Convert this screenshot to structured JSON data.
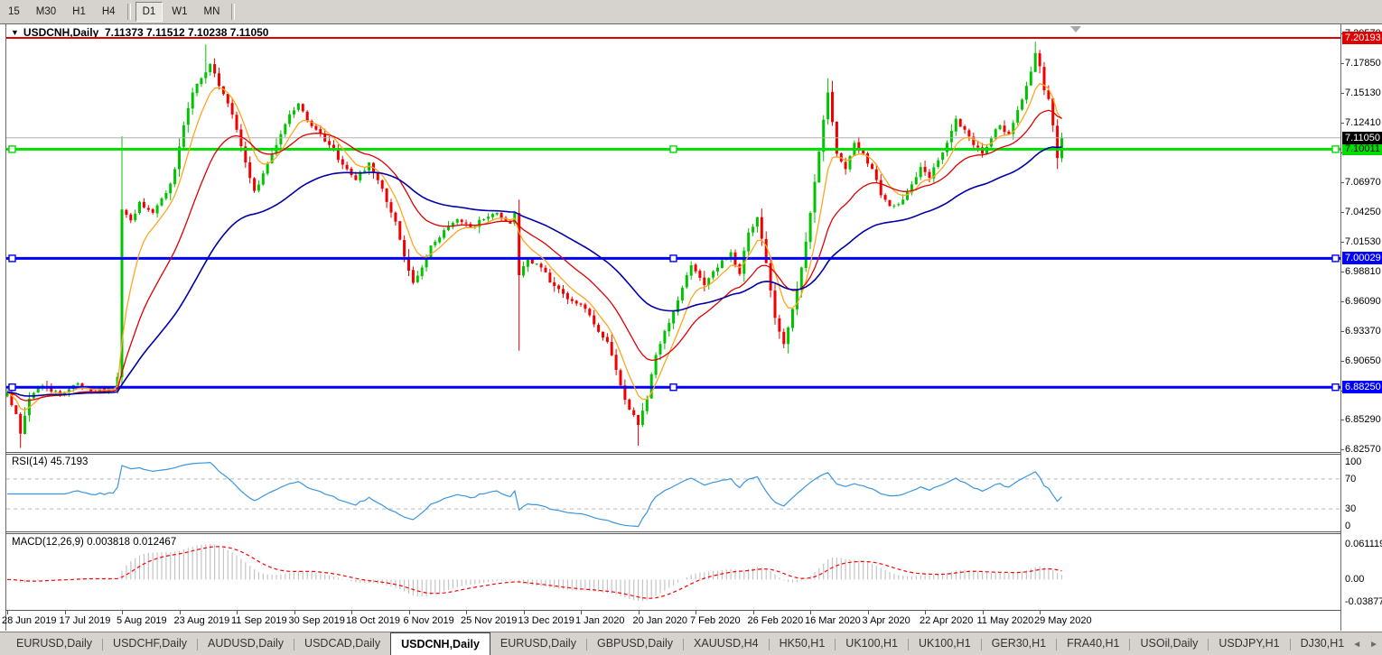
{
  "toolbar": {
    "timeframes": [
      {
        "label": "15",
        "active": false
      },
      {
        "label": "M30",
        "active": false
      },
      {
        "label": "H1",
        "active": false
      },
      {
        "label": "H4",
        "active": false
      },
      {
        "label": "D1",
        "active": true
      },
      {
        "label": "W1",
        "active": false
      },
      {
        "label": "MN",
        "active": false
      }
    ]
  },
  "chart": {
    "title_symbol": "USDCNH,Daily",
    "title_quote": "7.11373 7.11512 7.10238 7.11050"
  },
  "chart_data": {
    "type": "candlestick",
    "symbol": "USDCNH",
    "timeframe": "Daily",
    "ohlc_display": {
      "open": 7.11373,
      "high": 7.11512,
      "low": 7.10238,
      "close": 7.1105
    },
    "y_axis_labels": [
      "7.20570",
      "7.17850",
      "7.15130",
      "7.12410",
      "7.09690",
      "7.06970",
      "7.04250",
      "7.01530",
      "6.98810",
      "6.96090",
      "6.93370",
      "6.90650",
      "6.87930",
      "6.85290",
      "6.82570"
    ],
    "y_range": [
      6.8224,
      7.2143
    ],
    "x_labels": [
      "28 Jun 2019",
      "17 Jul 2019",
      "5 Aug 2019",
      "23 Aug 2019",
      "11 Sep 2019",
      "30 Sep 2019",
      "18 Oct 2019",
      "6 Nov 2019",
      "25 Nov 2019",
      "13 Dec 2019",
      "1 Jan 2020",
      "20 Jan 2020",
      "7 Feb 2020",
      "26 Feb 2020",
      "16 Mar 2020",
      "3 Apr 2020",
      "22 Apr 2020",
      "11 May 2020",
      "29 May 2020"
    ],
    "candles": {
      "count": 240,
      "close_keypoints": [
        [
          0,
          6.878
        ],
        [
          2,
          6.858
        ],
        [
          3,
          6.84
        ],
        [
          5,
          6.872
        ],
        [
          8,
          6.884
        ],
        [
          12,
          6.876
        ],
        [
          16,
          6.886
        ],
        [
          20,
          6.878
        ],
        [
          24,
          6.881
        ],
        [
          25,
          6.892
        ],
        [
          26,
          7.045
        ],
        [
          28,
          7.035
        ],
        [
          30,
          7.052
        ],
        [
          33,
          7.042
        ],
        [
          36,
          7.06
        ],
        [
          38,
          7.082
        ],
        [
          40,
          7.122
        ],
        [
          42,
          7.152
        ],
        [
          44,
          7.165
        ],
        [
          46,
          7.178
        ],
        [
          48,
          7.158
        ],
        [
          50,
          7.142
        ],
        [
          52,
          7.118
        ],
        [
          54,
          7.088
        ],
        [
          56,
          7.062
        ],
        [
          58,
          7.078
        ],
        [
          60,
          7.096
        ],
        [
          62,
          7.114
        ],
        [
          64,
          7.132
        ],
        [
          66,
          7.142
        ],
        [
          68,
          7.126
        ],
        [
          70,
          7.118
        ],
        [
          73,
          7.104
        ],
        [
          76,
          7.086
        ],
        [
          79,
          7.072
        ],
        [
          82,
          7.088
        ],
        [
          85,
          7.064
        ],
        [
          88,
          7.034
        ],
        [
          90,
          7.002
        ],
        [
          92,
          6.978
        ],
        [
          94,
          6.992
        ],
        [
          96,
          7.012
        ],
        [
          99,
          7.026
        ],
        [
          102,
          7.036
        ],
        [
          105,
          7.028
        ],
        [
          108,
          7.036
        ],
        [
          111,
          7.042
        ],
        [
          114,
          7.032
        ],
        [
          115,
          7.042
        ],
        [
          116,
          6.985
        ],
        [
          118,
          6.999
        ],
        [
          121,
          6.992
        ],
        [
          124,
          6.975
        ],
        [
          127,
          6.963
        ],
        [
          130,
          6.958
        ],
        [
          133,
          6.94
        ],
        [
          136,
          6.924
        ],
        [
          139,
          6.884
        ],
        [
          141,
          6.862
        ],
        [
          143,
          6.848
        ],
        [
          145,
          6.872
        ],
        [
          147,
          6.912
        ],
        [
          149,
          6.934
        ],
        [
          152,
          6.962
        ],
        [
          155,
          6.994
        ],
        [
          158,
          6.976
        ],
        [
          161,
          6.992
        ],
        [
          164,
          7.006
        ],
        [
          166,
          6.986
        ],
        [
          168,
          7.024
        ],
        [
          170,
          7.038
        ],
        [
          172,
          6.996
        ],
        [
          174,
          6.946
        ],
        [
          176,
          6.922
        ],
        [
          178,
          6.954
        ],
        [
          180,
          6.992
        ],
        [
          182,
          7.042
        ],
        [
          184,
          7.098
        ],
        [
          186,
          7.152
        ],
        [
          188,
          7.096
        ],
        [
          190,
          7.082
        ],
        [
          192,
          7.106
        ],
        [
          194,
          7.096
        ],
        [
          196,
          7.082
        ],
        [
          198,
          7.058
        ],
        [
          200,
          7.048
        ],
        [
          203,
          7.054
        ],
        [
          205,
          7.068
        ],
        [
          207,
          7.084
        ],
        [
          209,
          7.074
        ],
        [
          211,
          7.09
        ],
        [
          213,
          7.106
        ],
        [
          215,
          7.128
        ],
        [
          217,
          7.118
        ],
        [
          219,
          7.104
        ],
        [
          221,
          7.096
        ],
        [
          223,
          7.11
        ],
        [
          225,
          7.122
        ],
        [
          227,
          7.114
        ],
        [
          229,
          7.136
        ],
        [
          231,
          7.158
        ],
        [
          233,
          7.188
        ],
        [
          234,
          7.176
        ],
        [
          235,
          7.154
        ],
        [
          236,
          7.146
        ],
        [
          237,
          7.122
        ],
        [
          238,
          7.092
        ],
        [
          239,
          7.1105
        ]
      ],
      "wick_overrides": {
        "3": {
          "low": 6.827
        },
        "26": {
          "high": 7.112
        },
        "45": {
          "high": 7.196
        },
        "116": {
          "low": 6.916
        },
        "143": {
          "low": 6.829
        },
        "186": {
          "high": 7.165
        },
        "233": {
          "high": 7.1985
        },
        "238": {
          "low": 7.082
        }
      }
    },
    "horizontal_levels": [
      {
        "price": 7.20193,
        "label": "7.20193",
        "color": "#E00000",
        "thickness": 2,
        "badge_bg": "#E00000",
        "badge_fg": "#FFFFFF",
        "handles": false
      },
      {
        "price": 7.10011,
        "label": "7.10011",
        "color": "#00DD00",
        "thickness": 3,
        "badge_bg": "#00DD00",
        "badge_fg": "#000000",
        "handles": true
      },
      {
        "price": 7.00029,
        "label": "7.00029",
        "color": "#0000FF",
        "thickness": 3,
        "badge_bg": "#0000FF",
        "badge_fg": "#FFFFFF",
        "handles": true
      },
      {
        "price": 6.8825,
        "label": "6.88250",
        "color": "#0000FF",
        "thickness": 3,
        "badge_bg": "#0000FF",
        "badge_fg": "#FFFFFF",
        "handles": true
      }
    ],
    "current_price": {
      "price": 7.1105,
      "label": "7.11050",
      "line_color": "#B0B0B0",
      "badge_bg": "#000000",
      "badge_fg": "#FFFFFF"
    },
    "moving_averages": [
      {
        "period": 7,
        "color": "#FFA520"
      },
      {
        "period": 20,
        "color": "#E00000"
      },
      {
        "period": 50,
        "color": "#0000A8"
      }
    ],
    "rsi": {
      "label": "RSI(14) 45.7193",
      "period": 14,
      "value": 45.7193,
      "levels": [
        70,
        30
      ],
      "axis_labels": [
        [
          "100",
          100
        ],
        [
          "70",
          70
        ],
        [
          "30",
          30
        ],
        [
          "0",
          0
        ]
      ],
      "line_color": "#3996E0",
      "level_line_color": "#BBBBBB"
    },
    "macd": {
      "label": "MACD(12,26,9) 0.003818 0.012467",
      "fast": 12,
      "slow": 26,
      "signal_period": 9,
      "value": 0.003818,
      "signal_value": 0.012467,
      "axis_labels": [
        [
          "0.061119",
          0.061119
        ],
        [
          "0.00",
          0
        ],
        [
          "-0.03877",
          -0.03877
        ]
      ],
      "hist_color": "#C4C4C4",
      "signal_color": "#FF0000"
    },
    "colors": {
      "bull": "#00C400",
      "bear": "#F00000"
    }
  },
  "tabs": {
    "items": [
      {
        "label": "EURUSD,Daily",
        "active": false
      },
      {
        "label": "USDCHF,Daily",
        "active": false
      },
      {
        "label": "AUDUSD,Daily",
        "active": false
      },
      {
        "label": "USDCAD,Daily",
        "active": false
      },
      {
        "label": "USDCNH,Daily",
        "active": true
      },
      {
        "label": "EURUSD,Daily",
        "active": false
      },
      {
        "label": "GBPUSD,Daily",
        "active": false
      },
      {
        "label": "XAUUSD,H4",
        "active": false
      },
      {
        "label": "HK50,H1",
        "active": false
      },
      {
        "label": "UK100,H1",
        "active": false
      },
      {
        "label": "UK100,H1",
        "active": false
      },
      {
        "label": "GER30,H1",
        "active": false
      },
      {
        "label": "FRA40,H1",
        "active": false
      },
      {
        "label": "USOil,Daily",
        "active": false
      },
      {
        "label": "USDJPY,H1",
        "active": false
      },
      {
        "label": "DJ30,H1",
        "active": false
      }
    ],
    "nav_prev": "◄",
    "nav_next": "►"
  }
}
